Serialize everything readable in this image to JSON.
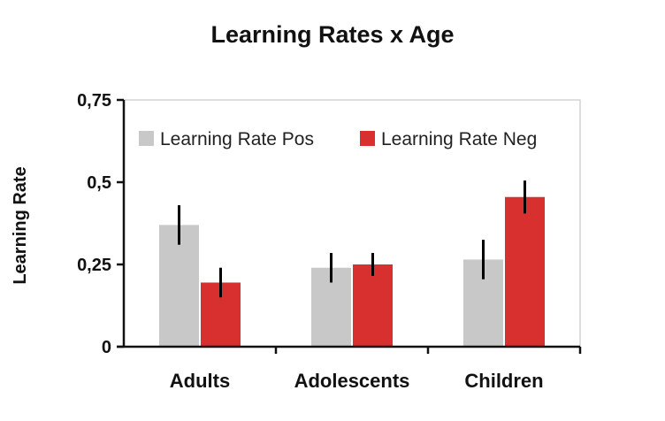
{
  "chart_data": {
    "type": "bar",
    "title": "Learning Rates x Age",
    "xlabel": "",
    "ylabel": "Learning Rate",
    "categories": [
      "Adults",
      "Adolescents",
      "Children"
    ],
    "yticks": [
      {
        "value": 0,
        "label": "0"
      },
      {
        "value": 0.25,
        "label": "0,25"
      },
      {
        "value": 0.5,
        "label": "0,5"
      },
      {
        "value": 0.75,
        "label": "0,75"
      }
    ],
    "ylim": [
      0,
      0.75
    ],
    "grid": false,
    "legend_position": "top",
    "series": [
      {
        "name": "Learning Rate Pos",
        "color": "#c8c8c8",
        "values": [
          0.37,
          0.24,
          0.265
        ],
        "errors": [
          0.06,
          0.045,
          0.06
        ]
      },
      {
        "name": "Learning Rate Neg",
        "color": "#d7302e",
        "values": [
          0.195,
          0.25,
          0.455
        ],
        "errors": [
          0.045,
          0.035,
          0.05
        ]
      }
    ]
  }
}
